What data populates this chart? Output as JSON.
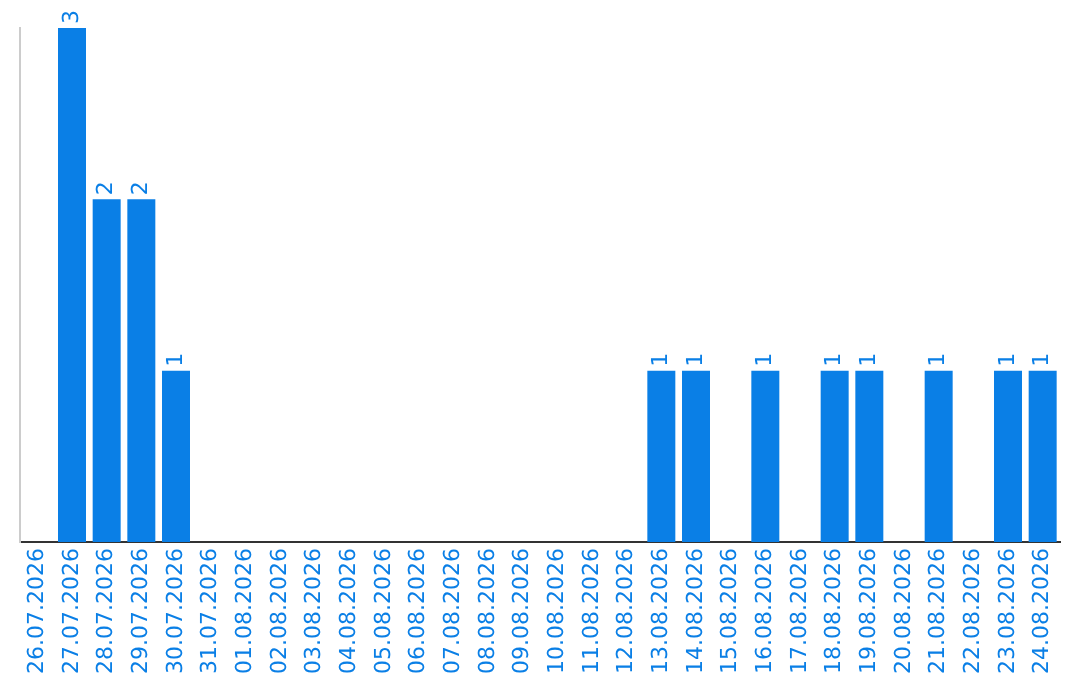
{
  "chart_data": {
    "type": "bar",
    "categories": [
      "26.07.2026",
      "27.07.2026",
      "28.07.2026",
      "29.07.2026",
      "30.07.2026",
      "31.07.2026",
      "01.08.2026",
      "02.08.2026",
      "03.08.2026",
      "04.08.2026",
      "05.08.2026",
      "06.08.2026",
      "07.08.2026",
      "08.08.2026",
      "09.08.2026",
      "10.08.2026",
      "11.08.2026",
      "12.08.2026",
      "13.08.2026",
      "14.08.2026",
      "15.08.2026",
      "16.08.2026",
      "17.08.2026",
      "18.08.2026",
      "19.08.2026",
      "20.08.2026",
      "21.08.2026",
      "22.08.2026",
      "23.08.2026",
      "24.08.2026"
    ],
    "values": [
      0,
      3,
      2,
      2,
      1,
      0,
      0,
      0,
      0,
      0,
      0,
      0,
      0,
      0,
      0,
      0,
      0,
      0,
      1,
      1,
      0,
      1,
      0,
      1,
      1,
      0,
      1,
      0,
      1,
      1
    ],
    "value_labels": [
      null,
      "3",
      "2",
      "2",
      "1",
      null,
      null,
      null,
      null,
      null,
      null,
      null,
      null,
      null,
      null,
      null,
      null,
      null,
      "1",
      "1",
      null,
      "1",
      null,
      "1",
      "1",
      null,
      "1",
      null,
      "1",
      "1"
    ],
    "color": "#0a7fe6",
    "grid": false,
    "legend": false
  }
}
